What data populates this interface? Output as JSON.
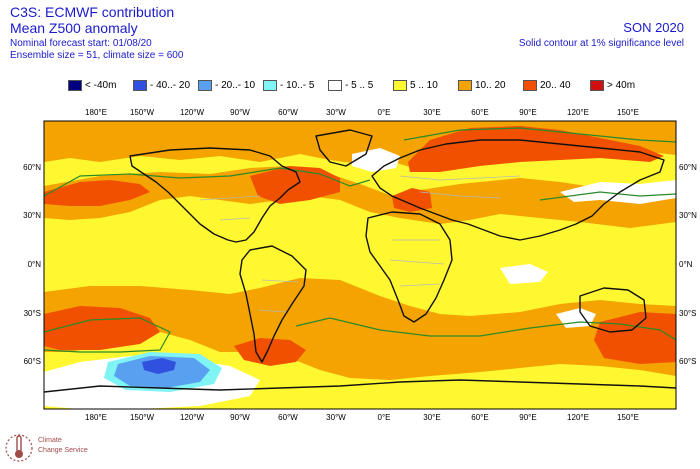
{
  "header": {
    "title": "C3S: ECMWF contribution",
    "subtitle": "Mean Z500 anomaly",
    "forecast_start": "Nominal forecast start: 01/08/20",
    "ensemble": "Ensemble size = 51, climate size = 600",
    "season": "SON 2020",
    "note": "Solid contour at 1% significance level"
  },
  "legend": [
    {
      "label": "< -40m",
      "color": "#000080"
    },
    {
      "label": "- 40..- 20",
      "color": "#3050e0"
    },
    {
      "label": "- 20..- 10",
      "color": "#5aa0f0"
    },
    {
      "label": "- 10..- 5",
      "color": "#80f4f4"
    },
    {
      "label": "- 5 .. 5",
      "color": "#ffffff"
    },
    {
      "label": "5 .. 10",
      "color": "#fff830"
    },
    {
      "label": "10.. 20",
      "color": "#f4a300"
    },
    {
      "label": "20.. 40",
      "color": "#f05000"
    },
    {
      "label": "> 40m",
      "color": "#d01010"
    }
  ],
  "axes": {
    "lon_labels": [
      "180°E",
      "150°W",
      "120°W",
      "90°W",
      "60°W",
      "30°W",
      "0°E",
      "30°E",
      "60°E",
      "90°E",
      "120°E",
      "150°E"
    ],
    "lat_labels": [
      "60°N",
      "30°N",
      "0°N",
      "30°S",
      "60°S"
    ]
  },
  "logo": {
    "line1": "Climate",
    "line2": "Change Service"
  }
}
